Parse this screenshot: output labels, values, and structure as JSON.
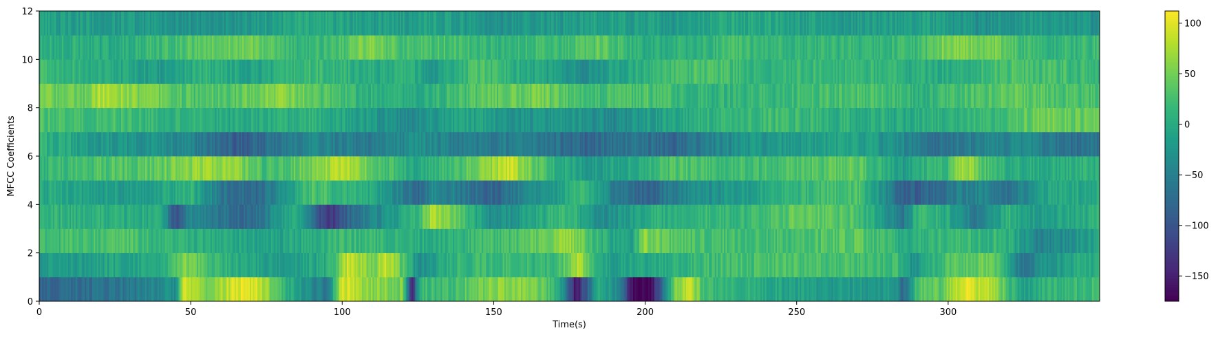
{
  "chart_data": {
    "type": "heatmap",
    "title": "",
    "xlabel": "Time(s)",
    "ylabel": "MFCC Coefficients",
    "xlim": [
      0,
      350
    ],
    "ylim": [
      0,
      12
    ],
    "x_ticks": [
      "0",
      "50",
      "100",
      "150",
      "200",
      "250",
      "300"
    ],
    "y_ticks": [
      "0",
      "2",
      "4",
      "6",
      "8",
      "10",
      "12"
    ],
    "colorbar": {
      "colormap": "viridis",
      "range": [
        -175,
        112
      ],
      "ticks": [
        "100",
        "50",
        "0",
        "−50",
        "−100",
        "−150"
      ]
    },
    "row_profiles": [
      {
        "row": 0,
        "t": [
          0,
          30,
          45,
          48,
          55,
          65,
          72,
          80,
          88,
          95,
          100,
          110,
          120,
          123,
          126,
          135,
          150,
          160,
          168,
          173,
          177,
          185,
          192,
          196,
          202,
          210,
          215,
          220,
          240,
          260,
          283,
          285,
          290,
          298,
          305,
          315,
          325,
          330,
          350
        ],
        "v": [
          -80,
          -60,
          -30,
          95,
          40,
          100,
          95,
          20,
          -30,
          -60,
          95,
          60,
          50,
          -140,
          20,
          20,
          60,
          60,
          30,
          -30,
          -160,
          0,
          -40,
          -175,
          -170,
          60,
          80,
          20,
          0,
          -20,
          -20,
          -90,
          30,
          40,
          105,
          70,
          -20,
          10,
          20
        ]
      },
      {
        "row": 1,
        "t": [
          0,
          40,
          48,
          60,
          80,
          95,
          102,
          110,
          115,
          122,
          125,
          135,
          150,
          170,
          178,
          185,
          200,
          220,
          250,
          283,
          288,
          300,
          315,
          325,
          330,
          350
        ],
        "v": [
          -20,
          0,
          60,
          10,
          -20,
          0,
          90,
          50,
          90,
          10,
          -40,
          10,
          20,
          10,
          80,
          -10,
          -10,
          20,
          30,
          20,
          -30,
          30,
          50,
          -70,
          -30,
          10
        ]
      },
      {
        "row": 2,
        "t": [
          0,
          30,
          40,
          60,
          80,
          100,
          120,
          130,
          145,
          160,
          175,
          185,
          195,
          200,
          210,
          240,
          270,
          285,
          300,
          320,
          330,
          350
        ],
        "v": [
          20,
          30,
          10,
          0,
          -10,
          20,
          10,
          0,
          20,
          30,
          70,
          10,
          -20,
          60,
          30,
          20,
          40,
          0,
          20,
          10,
          -50,
          -10
        ]
      },
      {
        "row": 3,
        "t": [
          0,
          40,
          45,
          50,
          60,
          70,
          85,
          92,
          97,
          105,
          115,
          125,
          130,
          140,
          150,
          165,
          175,
          185,
          200,
          215,
          230,
          250,
          270,
          285,
          290,
          300,
          310,
          320,
          330,
          350
        ],
        "v": [
          10,
          0,
          -100,
          -40,
          -60,
          -80,
          10,
          -100,
          -130,
          -60,
          -30,
          20,
          80,
          30,
          -40,
          0,
          20,
          -40,
          0,
          20,
          10,
          40,
          30,
          -60,
          20,
          0,
          -60,
          10,
          -20,
          10
        ]
      },
      {
        "row": 4,
        "t": [
          0,
          30,
          50,
          60,
          72,
          80,
          90,
          100,
          110,
          125,
          130,
          140,
          150,
          170,
          180,
          190,
          200,
          215,
          230,
          250,
          270,
          285,
          290,
          300,
          310,
          320,
          330,
          350
        ],
        "v": [
          0,
          -20,
          10,
          -60,
          -80,
          -30,
          30,
          10,
          0,
          -80,
          -40,
          -60,
          -80,
          -20,
          20,
          -60,
          -80,
          -40,
          -20,
          10,
          30,
          -80,
          -90,
          -60,
          -40,
          -70,
          -10,
          0
        ]
      },
      {
        "row": 5,
        "t": [
          0,
          20,
          40,
          55,
          65,
          75,
          90,
          100,
          110,
          125,
          140,
          155,
          160,
          170,
          180,
          195,
          210,
          230,
          250,
          270,
          285,
          290,
          300,
          305,
          315,
          330,
          350
        ],
        "v": [
          10,
          30,
          40,
          70,
          60,
          20,
          50,
          80,
          40,
          0,
          30,
          90,
          60,
          10,
          -20,
          0,
          30,
          20,
          30,
          40,
          -20,
          10,
          20,
          80,
          10,
          0,
          10
        ]
      },
      {
        "row": 6,
        "t": [
          0,
          20,
          40,
          55,
          65,
          75,
          90,
          110,
          125,
          140,
          160,
          180,
          195,
          210,
          230,
          250,
          270,
          285,
          295,
          310,
          325,
          340,
          350
        ],
        "v": [
          10,
          -20,
          -30,
          -60,
          -90,
          -70,
          -40,
          -60,
          -30,
          -60,
          -50,
          -80,
          -60,
          -80,
          -30,
          -20,
          -10,
          -40,
          -70,
          -50,
          -40,
          -70,
          -60
        ]
      },
      {
        "row": 7,
        "t": [
          0,
          30,
          60,
          90,
          110,
          120,
          140,
          160,
          175,
          190,
          200,
          220,
          240,
          260,
          285,
          300,
          320,
          330,
          350
        ],
        "v": [
          30,
          20,
          0,
          10,
          -20,
          -40,
          -10,
          -30,
          -20,
          -40,
          -20,
          10,
          20,
          10,
          0,
          10,
          20,
          50,
          40
        ]
      },
      {
        "row": 8,
        "t": [
          0,
          15,
          20,
          35,
          50,
          65,
          80,
          100,
          110,
          125,
          150,
          165,
          180,
          200,
          220,
          250,
          270,
          290,
          300,
          320,
          340,
          350
        ],
        "v": [
          50,
          40,
          80,
          50,
          30,
          40,
          60,
          20,
          10,
          0,
          40,
          50,
          20,
          30,
          10,
          20,
          30,
          10,
          20,
          40,
          30,
          20
        ]
      },
      {
        "row": 9,
        "t": [
          0,
          25,
          40,
          55,
          70,
          90,
          110,
          120,
          130,
          145,
          160,
          180,
          200,
          220,
          240,
          260,
          280,
          300,
          320,
          340,
          350
        ],
        "v": [
          20,
          0,
          -20,
          10,
          -10,
          20,
          0,
          10,
          -20,
          30,
          0,
          -30,
          10,
          30,
          10,
          20,
          10,
          0,
          30,
          20,
          10
        ]
      },
      {
        "row": 10,
        "t": [
          0,
          20,
          40,
          55,
          70,
          85,
          100,
          110,
          120,
          135,
          150,
          170,
          185,
          200,
          230,
          260,
          290,
          300,
          315,
          330,
          350
        ],
        "v": [
          10,
          0,
          20,
          40,
          50,
          10,
          30,
          60,
          20,
          30,
          10,
          20,
          40,
          0,
          20,
          10,
          20,
          60,
          50,
          10,
          20
        ]
      },
      {
        "row": 11,
        "t": [
          0,
          30,
          60,
          90,
          110,
          130,
          150,
          170,
          190,
          210,
          230,
          250,
          270,
          290,
          310,
          330,
          350
        ],
        "v": [
          -10,
          -20,
          -30,
          0,
          -20,
          -10,
          -30,
          -20,
          -10,
          -20,
          0,
          -10,
          -20,
          -10,
          -30,
          -20,
          -30
        ]
      }
    ]
  },
  "colors": {
    "axis": "#000000",
    "background": "#ffffff"
  }
}
